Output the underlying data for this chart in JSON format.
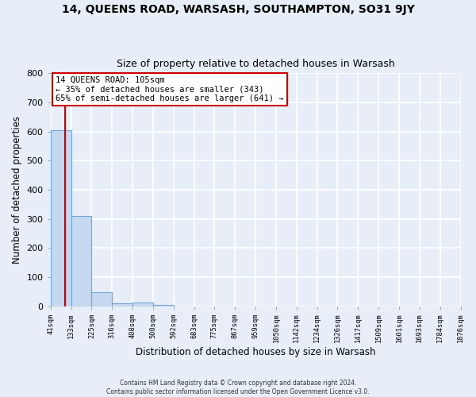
{
  "title": "14, QUEENS ROAD, WARSASH, SOUTHAMPTON, SO31 9JY",
  "subtitle": "Size of property relative to detached houses in Warsash",
  "xlabel": "Distribution of detached houses by size in Warsash",
  "ylabel": "Number of detached properties",
  "bar_values": [
    605,
    310,
    48,
    10,
    13,
    5,
    0,
    0,
    0,
    0,
    0,
    0,
    0,
    0,
    0,
    0,
    0,
    0,
    0,
    0
  ],
  "bar_color": "#c5d8f0",
  "bar_edge_color": "#6fa8d6",
  "x_labels": [
    "41sqm",
    "133sqm",
    "225sqm",
    "316sqm",
    "408sqm",
    "500sqm",
    "592sqm",
    "683sqm",
    "775sqm",
    "867sqm",
    "959sqm",
    "1050sqm",
    "1142sqm",
    "1234sqm",
    "1326sqm",
    "1417sqm",
    "1509sqm",
    "1601sqm",
    "1693sqm",
    "1784sqm",
    "1876sqm"
  ],
  "ylim": [
    0,
    800
  ],
  "yticks": [
    0,
    100,
    200,
    300,
    400,
    500,
    600,
    700,
    800
  ],
  "red_line_color": "#cc0000",
  "annotation_text": "14 QUEENS ROAD: 105sqm\n← 35% of detached houses are smaller (343)\n65% of semi-detached houses are larger (641) →",
  "annotation_box_color": "#ffffff",
  "annotation_box_edge_color": "#cc0000",
  "footer_line1": "Contains HM Land Registry data © Crown copyright and database right 2024.",
  "footer_line2": "Contains public sector information licensed under the Open Government Licence v3.0.",
  "background_color": "#e8eef8",
  "grid_color": "#ffffff",
  "title_fontsize": 10,
  "subtitle_fontsize": 9,
  "n_bars": 20
}
